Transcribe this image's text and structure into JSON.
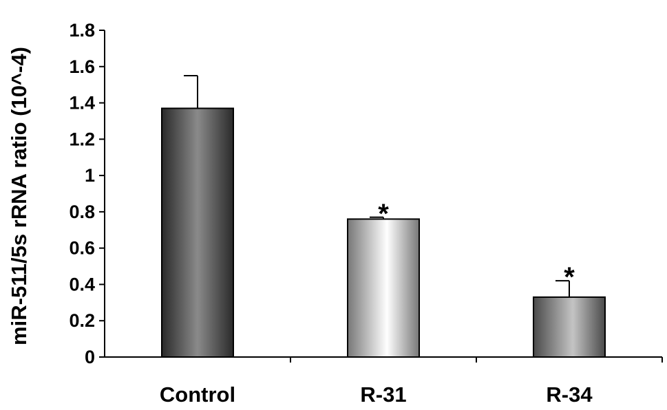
{
  "chart_data": {
    "type": "bar",
    "title": "",
    "xlabel": "",
    "ylabel": "miR-511/5s rRNA ratio (10^-4)",
    "categories": [
      "Control",
      "R-31",
      "R-34"
    ],
    "values": [
      1.37,
      0.76,
      0.33
    ],
    "errors": [
      0.18,
      0.01,
      0.09
    ],
    "annotations": [
      "",
      "*",
      "*"
    ],
    "ylim": [
      0,
      1.8
    ],
    "yticks": [
      "0",
      "0.2",
      "0.4",
      "0.6",
      "0.8",
      "1",
      "1.2",
      "1.4",
      "1.6",
      "1.8"
    ],
    "grid": false,
    "legend": "none",
    "bar_styles": [
      "dark",
      "light",
      "mid"
    ]
  }
}
